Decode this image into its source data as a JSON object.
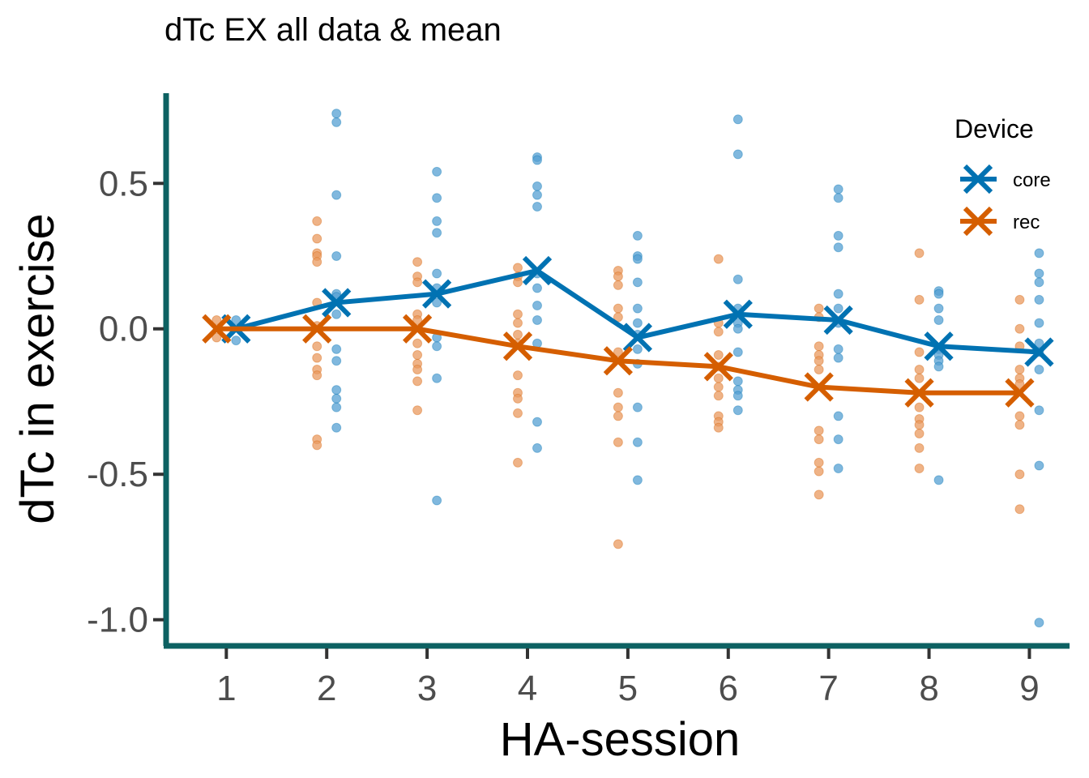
{
  "chart_data": {
    "type": "scatter",
    "title": "dTc EX all data & mean",
    "xlabel": "HA-session",
    "ylabel": "dTc in exercise",
    "x_ticks": [
      "1",
      "2",
      "3",
      "4",
      "5",
      "6",
      "7",
      "8",
      "9"
    ],
    "y_ticks": [
      {
        "value": 0.5,
        "label": "0.5"
      },
      {
        "value": 0.0,
        "label": "0.0"
      },
      {
        "value": -0.5,
        "label": "-0.5"
      },
      {
        "value": -1.0,
        "label": "-1.0"
      }
    ],
    "xlim": [
      0.4,
      9.4
    ],
    "ylim": [
      -1.09,
      0.81
    ],
    "grid": false,
    "axis_color": "#0d6162",
    "legend": {
      "title": "Device",
      "position": "top-right",
      "entries": [
        {
          "label": "core",
          "color": "#0072b2"
        },
        {
          "label": "rec",
          "color": "#d55e00"
        }
      ]
    },
    "series": [
      {
        "name": "core",
        "color": "#0072b2",
        "point_color": "#56a0d3",
        "mean": [
          {
            "x": 1,
            "y": 0.0
          },
          {
            "x": 2,
            "y": 0.09
          },
          {
            "x": 3,
            "y": 0.12
          },
          {
            "x": 4,
            "y": 0.2
          },
          {
            "x": 5,
            "y": -0.03
          },
          {
            "x": 6,
            "y": 0.05
          },
          {
            "x": 7,
            "y": 0.03
          },
          {
            "x": 8,
            "y": -0.06
          },
          {
            "x": 9,
            "y": -0.08
          }
        ],
        "points": [
          {
            "x": 1,
            "y": 0.03
          },
          {
            "x": 1,
            "y": -0.04
          },
          {
            "x": 2,
            "y": 0.74
          },
          {
            "x": 2,
            "y": 0.71
          },
          {
            "x": 2,
            "y": 0.46
          },
          {
            "x": 2,
            "y": 0.25
          },
          {
            "x": 2,
            "y": 0.12
          },
          {
            "x": 2,
            "y": 0.11
          },
          {
            "x": 2,
            "y": 0.05
          },
          {
            "x": 2,
            "y": -0.07
          },
          {
            "x": 2,
            "y": -0.11
          },
          {
            "x": 2,
            "y": -0.21
          },
          {
            "x": 2,
            "y": -0.24
          },
          {
            "x": 2,
            "y": -0.27
          },
          {
            "x": 2,
            "y": -0.34
          },
          {
            "x": 3,
            "y": 0.54
          },
          {
            "x": 3,
            "y": 0.45
          },
          {
            "x": 3,
            "y": 0.37
          },
          {
            "x": 3,
            "y": 0.33
          },
          {
            "x": 3,
            "y": 0.19
          },
          {
            "x": 3,
            "y": 0.14
          },
          {
            "x": 3,
            "y": 0.09
          },
          {
            "x": 3,
            "y": -0.03
          },
          {
            "x": 3,
            "y": -0.06
          },
          {
            "x": 3,
            "y": -0.17
          },
          {
            "x": 3,
            "y": -0.59
          },
          {
            "x": 4,
            "y": 0.59
          },
          {
            "x": 4,
            "y": 0.58
          },
          {
            "x": 4,
            "y": 0.49
          },
          {
            "x": 4,
            "y": 0.46
          },
          {
            "x": 4,
            "y": 0.42
          },
          {
            "x": 4,
            "y": 0.19
          },
          {
            "x": 4,
            "y": 0.14
          },
          {
            "x": 4,
            "y": 0.08
          },
          {
            "x": 4,
            "y": 0.03
          },
          {
            "x": 4,
            "y": -0.05
          },
          {
            "x": 4,
            "y": -0.32
          },
          {
            "x": 4,
            "y": -0.41
          },
          {
            "x": 5,
            "y": 0.32
          },
          {
            "x": 5,
            "y": 0.25
          },
          {
            "x": 5,
            "y": 0.24
          },
          {
            "x": 5,
            "y": 0.16
          },
          {
            "x": 5,
            "y": 0.07
          },
          {
            "x": 5,
            "y": 0.02
          },
          {
            "x": 5,
            "y": -0.02
          },
          {
            "x": 5,
            "y": -0.07
          },
          {
            "x": 5,
            "y": -0.12
          },
          {
            "x": 5,
            "y": -0.27
          },
          {
            "x": 5,
            "y": -0.39
          },
          {
            "x": 5,
            "y": -0.52
          },
          {
            "x": 6,
            "y": 0.72
          },
          {
            "x": 6,
            "y": 0.6
          },
          {
            "x": 6,
            "y": 0.17
          },
          {
            "x": 6,
            "y": 0.07
          },
          {
            "x": 6,
            "y": 0.02
          },
          {
            "x": 6,
            "y": 0.0
          },
          {
            "x": 6,
            "y": -0.08
          },
          {
            "x": 6,
            "y": -0.18
          },
          {
            "x": 6,
            "y": -0.21
          },
          {
            "x": 6,
            "y": -0.23
          },
          {
            "x": 6,
            "y": -0.28
          },
          {
            "x": 7,
            "y": 0.48
          },
          {
            "x": 7,
            "y": 0.45
          },
          {
            "x": 7,
            "y": 0.32
          },
          {
            "x": 7,
            "y": 0.28
          },
          {
            "x": 7,
            "y": 0.12
          },
          {
            "x": 7,
            "y": 0.07
          },
          {
            "x": 7,
            "y": 0.02
          },
          {
            "x": 7,
            "y": -0.07
          },
          {
            "x": 7,
            "y": -0.1
          },
          {
            "x": 7,
            "y": -0.3
          },
          {
            "x": 7,
            "y": -0.38
          },
          {
            "x": 7,
            "y": -0.48
          },
          {
            "x": 8,
            "y": 0.13
          },
          {
            "x": 8,
            "y": 0.12
          },
          {
            "x": 8,
            "y": 0.07
          },
          {
            "x": 8,
            "y": 0.03
          },
          {
            "x": 8,
            "y": -0.07
          },
          {
            "x": 8,
            "y": -0.09
          },
          {
            "x": 8,
            "y": -0.11
          },
          {
            "x": 8,
            "y": -0.13
          },
          {
            "x": 8,
            "y": -0.52
          },
          {
            "x": 9,
            "y": 0.26
          },
          {
            "x": 9,
            "y": 0.19
          },
          {
            "x": 9,
            "y": 0.16
          },
          {
            "x": 9,
            "y": 0.1
          },
          {
            "x": 9,
            "y": 0.02
          },
          {
            "x": 9,
            "y": -0.05
          },
          {
            "x": 9,
            "y": -0.08
          },
          {
            "x": 9,
            "y": -0.14
          },
          {
            "x": 9,
            "y": -0.28
          },
          {
            "x": 9,
            "y": -0.47
          },
          {
            "x": 9,
            "y": -1.01
          }
        ]
      },
      {
        "name": "rec",
        "color": "#d55e00",
        "point_color": "#ea9a5f",
        "mean": [
          {
            "x": 1,
            "y": 0.0
          },
          {
            "x": 2,
            "y": 0.0
          },
          {
            "x": 3,
            "y": 0.0
          },
          {
            "x": 4,
            "y": -0.06
          },
          {
            "x": 5,
            "y": -0.11
          },
          {
            "x": 6,
            "y": -0.13
          },
          {
            "x": 7,
            "y": -0.2
          },
          {
            "x": 8,
            "y": -0.22
          },
          {
            "x": 9,
            "y": -0.22
          }
        ],
        "points": [
          {
            "x": 1,
            "y": 0.03
          },
          {
            "x": 1,
            "y": -0.03
          },
          {
            "x": 2,
            "y": 0.37
          },
          {
            "x": 2,
            "y": 0.31
          },
          {
            "x": 2,
            "y": 0.26
          },
          {
            "x": 2,
            "y": 0.25
          },
          {
            "x": 2,
            "y": 0.23
          },
          {
            "x": 2,
            "y": 0.09
          },
          {
            "x": 2,
            "y": 0.01
          },
          {
            "x": 2,
            "y": -0.06
          },
          {
            "x": 2,
            "y": -0.1
          },
          {
            "x": 2,
            "y": -0.14
          },
          {
            "x": 2,
            "y": -0.16
          },
          {
            "x": 2,
            "y": -0.38
          },
          {
            "x": 2,
            "y": -0.4
          },
          {
            "x": 3,
            "y": 0.23
          },
          {
            "x": 3,
            "y": 0.18
          },
          {
            "x": 3,
            "y": 0.16
          },
          {
            "x": 3,
            "y": 0.05
          },
          {
            "x": 3,
            "y": 0.03
          },
          {
            "x": 3,
            "y": -0.05
          },
          {
            "x": 3,
            "y": -0.09
          },
          {
            "x": 3,
            "y": -0.12
          },
          {
            "x": 3,
            "y": -0.14
          },
          {
            "x": 3,
            "y": -0.18
          },
          {
            "x": 3,
            "y": -0.28
          },
          {
            "x": 4,
            "y": 0.21
          },
          {
            "x": 4,
            "y": 0.18
          },
          {
            "x": 4,
            "y": 0.16
          },
          {
            "x": 4,
            "y": 0.05
          },
          {
            "x": 4,
            "y": 0.02
          },
          {
            "x": 4,
            "y": -0.02
          },
          {
            "x": 4,
            "y": -0.05
          },
          {
            "x": 4,
            "y": -0.16
          },
          {
            "x": 4,
            "y": -0.22
          },
          {
            "x": 4,
            "y": -0.24
          },
          {
            "x": 4,
            "y": -0.29
          },
          {
            "x": 4,
            "y": -0.46
          },
          {
            "x": 5,
            "y": 0.2
          },
          {
            "x": 5,
            "y": 0.18
          },
          {
            "x": 5,
            "y": 0.15
          },
          {
            "x": 5,
            "y": 0.07
          },
          {
            "x": 5,
            "y": 0.04
          },
          {
            "x": 5,
            "y": -0.08
          },
          {
            "x": 5,
            "y": -0.22
          },
          {
            "x": 5,
            "y": -0.27
          },
          {
            "x": 5,
            "y": -0.3
          },
          {
            "x": 5,
            "y": -0.39
          },
          {
            "x": 5,
            "y": -0.74
          },
          {
            "x": 6,
            "y": 0.24
          },
          {
            "x": 6,
            "y": 0.02
          },
          {
            "x": 6,
            "y": -0.01
          },
          {
            "x": 6,
            "y": -0.09
          },
          {
            "x": 6,
            "y": -0.13
          },
          {
            "x": 6,
            "y": -0.17
          },
          {
            "x": 6,
            "y": -0.2
          },
          {
            "x": 6,
            "y": -0.23
          },
          {
            "x": 6,
            "y": -0.3
          },
          {
            "x": 6,
            "y": -0.32
          },
          {
            "x": 6,
            "y": -0.34
          },
          {
            "x": 7,
            "y": 0.07
          },
          {
            "x": 7,
            "y": 0.04
          },
          {
            "x": 7,
            "y": -0.06
          },
          {
            "x": 7,
            "y": -0.09
          },
          {
            "x": 7,
            "y": -0.11
          },
          {
            "x": 7,
            "y": -0.14
          },
          {
            "x": 7,
            "y": -0.35
          },
          {
            "x": 7,
            "y": -0.38
          },
          {
            "x": 7,
            "y": -0.46
          },
          {
            "x": 7,
            "y": -0.49
          },
          {
            "x": 7,
            "y": -0.57
          },
          {
            "x": 8,
            "y": 0.26
          },
          {
            "x": 8,
            "y": 0.1
          },
          {
            "x": 8,
            "y": -0.08
          },
          {
            "x": 8,
            "y": -0.14
          },
          {
            "x": 8,
            "y": -0.17
          },
          {
            "x": 8,
            "y": -0.27
          },
          {
            "x": 8,
            "y": -0.31
          },
          {
            "x": 8,
            "y": -0.33
          },
          {
            "x": 8,
            "y": -0.36
          },
          {
            "x": 8,
            "y": -0.41
          },
          {
            "x": 8,
            "y": -0.48
          },
          {
            "x": 9,
            "y": 0.1
          },
          {
            "x": 9,
            "y": 0.0
          },
          {
            "x": 9,
            "y": -0.06
          },
          {
            "x": 9,
            "y": -0.14
          },
          {
            "x": 9,
            "y": -0.17
          },
          {
            "x": 9,
            "y": -0.19
          },
          {
            "x": 9,
            "y": -0.3
          },
          {
            "x": 9,
            "y": -0.33
          },
          {
            "x": 9,
            "y": -0.5
          },
          {
            "x": 9,
            "y": -0.62
          }
        ]
      }
    ]
  }
}
